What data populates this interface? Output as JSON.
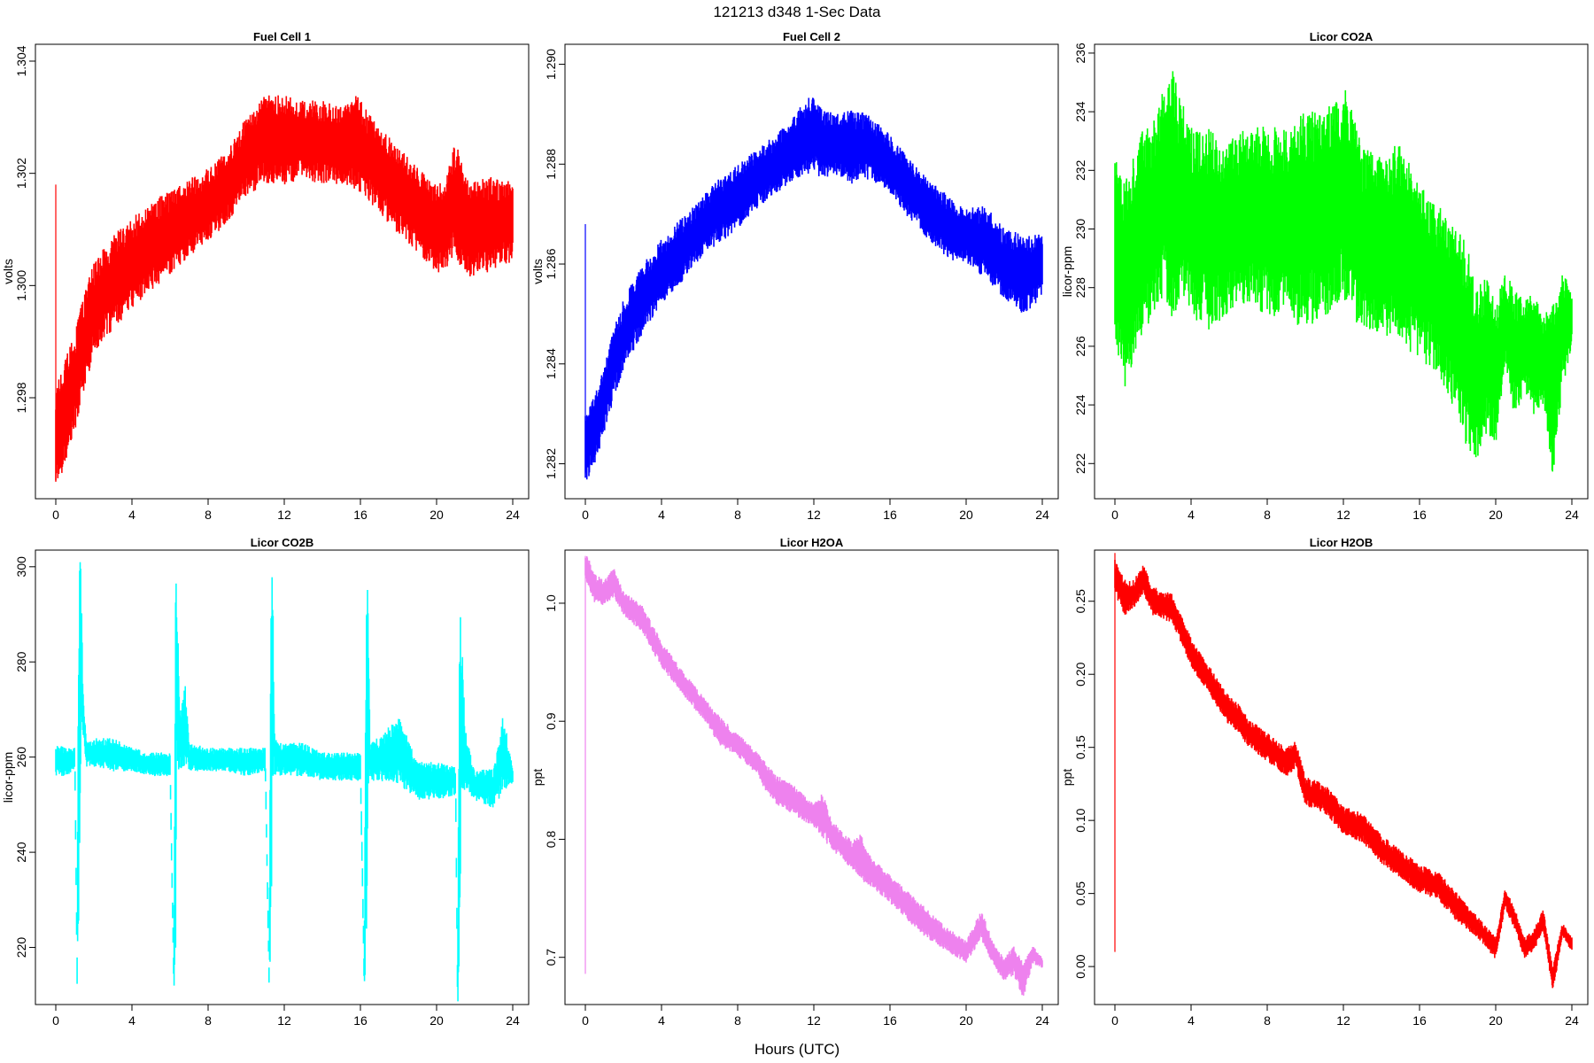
{
  "page": {
    "title": "121213   d348   1-Sec Data",
    "xlabel": "Hours (UTC)"
  },
  "chart_data": [
    {
      "type": "line",
      "title": "Fuel Cell 1",
      "ylabel": "volts",
      "color": "#ff0000",
      "xlim": [
        0,
        24
      ],
      "ylim": [
        1.2962,
        1.3043
      ],
      "xticks": [
        0,
        4,
        8,
        12,
        16,
        20,
        24
      ],
      "yticks": [
        "1.298",
        "1.300",
        "1.302",
        "1.304"
      ],
      "spike": {
        "x": 0,
        "min": 1.2965,
        "max": 1.3018
      },
      "x": [
        0,
        0.5,
        1,
        1.5,
        2,
        3,
        4,
        5,
        6,
        7,
        8,
        9,
        10,
        11,
        12,
        13,
        14,
        15,
        15.8,
        17,
        18,
        19,
        20,
        20.5,
        21,
        21.5,
        22,
        23,
        24
      ],
      "min": [
        1.2964,
        1.2968,
        1.2974,
        1.2981,
        1.2988,
        1.2992,
        1.2996,
        1.2999,
        1.3002,
        1.3005,
        1.3008,
        1.3011,
        1.3016,
        1.3018,
        1.3018,
        1.3019,
        1.3018,
        1.3018,
        1.3017,
        1.3013,
        1.3009,
        1.3006,
        1.3002,
        1.3003,
        1.3005,
        1.3002,
        1.3001,
        1.3003,
        1.3004
      ],
      "max": [
        1.2982,
        1.2987,
        1.2992,
        1.2999,
        1.3004,
        1.3009,
        1.3012,
        1.3015,
        1.3017,
        1.3019,
        1.3021,
        1.3024,
        1.303,
        1.3034,
        1.3034,
        1.3033,
        1.3033,
        1.3032,
        1.3034,
        1.3028,
        1.3025,
        1.3021,
        1.3018,
        1.3019,
        1.3026,
        1.302,
        1.3019,
        1.302,
        1.3019
      ]
    },
    {
      "type": "line",
      "title": "Fuel Cell 2",
      "ylabel": "volts",
      "color": "#0000ff",
      "xlim": [
        0,
        24
      ],
      "ylim": [
        1.2813,
        1.2904
      ],
      "xticks": [
        0,
        4,
        8,
        12,
        16,
        20,
        24
      ],
      "yticks": [
        "1.282",
        "1.284",
        "1.286",
        "1.288",
        "1.290"
      ],
      "spike": {
        "x": 0,
        "min": 1.2818,
        "max": 1.2868
      },
      "x": [
        0,
        0.5,
        1,
        1.5,
        2,
        3,
        4,
        5,
        6,
        7,
        8,
        9,
        10,
        11,
        11.8,
        12.5,
        13,
        14,
        15,
        16,
        17,
        18,
        19,
        20,
        21,
        22,
        23,
        24
      ],
      "min": [
        1.2816,
        1.282,
        1.2826,
        1.2833,
        1.2839,
        1.2846,
        1.2852,
        1.2856,
        1.2861,
        1.2864,
        1.2867,
        1.2871,
        1.2874,
        1.2877,
        1.2878,
        1.2877,
        1.2878,
        1.2876,
        1.2877,
        1.2874,
        1.2869,
        1.2865,
        1.2861,
        1.286,
        1.2857,
        1.2853,
        1.285,
        1.2853
      ],
      "max": [
        1.283,
        1.2834,
        1.284,
        1.2847,
        1.2853,
        1.286,
        1.2865,
        1.2869,
        1.2873,
        1.2877,
        1.288,
        1.2883,
        1.2886,
        1.289,
        1.2894,
        1.2892,
        1.289,
        1.2891,
        1.289,
        1.2886,
        1.2881,
        1.2877,
        1.2874,
        1.2871,
        1.2872,
        1.2867,
        1.2866,
        1.2866
      ]
    },
    {
      "type": "line",
      "title": "Licor CO2A",
      "ylabel": "licor-ppm",
      "color": "#00ff00",
      "xlim": [
        0,
        24
      ],
      "ylim": [
        220.8,
        236.3
      ],
      "xticks": [
        0,
        4,
        8,
        12,
        16,
        20,
        24
      ],
      "yticks": [
        "222",
        "224",
        "226",
        "228",
        "230",
        "232",
        "234",
        "236"
      ],
      "spike": null,
      "x": [
        0,
        0.5,
        1,
        1.5,
        2,
        2.5,
        3,
        3.5,
        4,
        5,
        6,
        7,
        8,
        9,
        10,
        11,
        12,
        13,
        14,
        15,
        16,
        17,
        18,
        18.5,
        19,
        19.5,
        20,
        20.5,
        21,
        21.5,
        22,
        22.5,
        23,
        23.5,
        24
      ],
      "min": [
        226.0,
        224.5,
        225.5,
        226.5,
        227.0,
        227.5,
        227.0,
        227.5,
        227.0,
        226.5,
        227.0,
        227.5,
        227.0,
        227.0,
        226.5,
        227.0,
        227.5,
        226.5,
        226.5,
        226.0,
        225.5,
        225.0,
        223.5,
        222.5,
        222.0,
        223.0,
        222.5,
        225.5,
        223.5,
        224.5,
        223.5,
        224.0,
        221.5,
        224.5,
        226.0
      ],
      "max": [
        233.0,
        231.5,
        232.5,
        233.5,
        234.0,
        235.0,
        235.5,
        234.5,
        233.5,
        233.5,
        233.0,
        233.5,
        233.5,
        233.5,
        234.0,
        234.0,
        235.0,
        233.0,
        232.5,
        233.0,
        231.5,
        231.0,
        230.0,
        229.5,
        228.0,
        228.5,
        227.5,
        228.5,
        228.0,
        227.5,
        228.0,
        227.0,
        227.5,
        228.5,
        228.0
      ]
    },
    {
      "type": "line",
      "title": "Licor CO2B",
      "ylabel": "licor-ppm",
      "color": "#00ffff",
      "xlim": [
        0,
        24
      ],
      "ylim": [
        208.0,
        303.5
      ],
      "xticks": [
        0,
        4,
        8,
        12,
        16,
        20,
        24
      ],
      "yticks": [
        "220",
        "240",
        "260",
        "280",
        "300"
      ],
      "spike": null,
      "x": [
        0,
        0.5,
        1.0,
        1.12,
        1.2,
        1.3,
        1.45,
        1.6,
        2,
        3,
        4,
        5,
        6.0,
        6.2,
        6.28,
        6.35,
        6.5,
        6.8,
        7,
        8,
        9,
        10,
        11.0,
        11.2,
        11.3,
        11.38,
        11.5,
        12,
        13,
        14,
        15,
        16.0,
        16.2,
        16.3,
        16.4,
        16.5,
        17,
        18,
        19,
        20,
        21.0,
        21.1,
        21.2,
        21.3,
        21.5,
        22,
        23,
        23.5,
        24
      ],
      "min": [
        256,
        256,
        257,
        212,
        212,
        258,
        265,
        258,
        258,
        257,
        257,
        256,
        256,
        211,
        211,
        255,
        257,
        258,
        257,
        257,
        257,
        256,
        257,
        212,
        213,
        255,
        256,
        256,
        256,
        255,
        255,
        255,
        211,
        211,
        254,
        255,
        255,
        254,
        251,
        251,
        252,
        208,
        208,
        252,
        253,
        251,
        249,
        253,
        254
      ],
      "max": [
        263,
        262,
        262,
        218,
        302,
        302,
        273,
        264,
        264,
        264,
        262,
        261,
        261,
        215,
        299,
        299,
        270,
        275,
        263,
        262,
        262,
        262,
        262,
        216,
        300,
        300,
        264,
        263,
        263,
        261,
        261,
        261,
        216,
        299,
        299,
        264,
        264,
        269,
        259,
        259,
        258,
        214,
        291,
        288,
        266,
        257,
        258,
        269,
        258
      ]
    },
    {
      "type": "line",
      "title": "Licor H2OA",
      "ylabel": "ppt",
      "color": "#ee82ee",
      "xlim": [
        0,
        24
      ],
      "ylim": [
        0.66,
        1.045
      ],
      "xticks": [
        0,
        4,
        8,
        12,
        16,
        20,
        24
      ],
      "yticks": [
        "0.7",
        "0.8",
        "0.9",
        "1.0"
      ],
      "spike": {
        "x": 0,
        "min": 0.686,
        "max": 1.04
      },
      "x": [
        0,
        0.5,
        1,
        1.5,
        2,
        3,
        4,
        5,
        6,
        6.5,
        7,
        8,
        9,
        9.5,
        10,
        11,
        12,
        12.5,
        13,
        14,
        14.5,
        15,
        16,
        17,
        18,
        19,
        20,
        20.8,
        21.5,
        22,
        22.5,
        23,
        23.5,
        24
      ],
      "min": [
        1.02,
        1.0,
        0.998,
        1.005,
        0.99,
        0.975,
        0.945,
        0.925,
        0.905,
        0.895,
        0.88,
        0.87,
        0.855,
        0.84,
        0.83,
        0.82,
        0.81,
        0.8,
        0.79,
        0.775,
        0.765,
        0.76,
        0.745,
        0.73,
        0.715,
        0.705,
        0.695,
        0.715,
        0.69,
        0.68,
        0.685,
        0.665,
        0.695,
        0.69
      ],
      "max": [
        1.045,
        1.025,
        1.02,
        1.03,
        1.01,
        0.998,
        0.968,
        0.945,
        0.925,
        0.915,
        0.905,
        0.89,
        0.875,
        0.865,
        0.855,
        0.845,
        0.83,
        0.84,
        0.815,
        0.8,
        0.805,
        0.785,
        0.77,
        0.755,
        0.74,
        0.725,
        0.715,
        0.74,
        0.71,
        0.7,
        0.71,
        0.695,
        0.71,
        0.7
      ]
    },
    {
      "type": "line",
      "title": "Licor H2OB",
      "ylabel": "ppt",
      "color": "#ff0000",
      "xlim": [
        0,
        24
      ],
      "ylim": [
        -0.026,
        0.285
      ],
      "xticks": [
        0,
        4,
        8,
        12,
        16,
        20,
        24
      ],
      "yticks": [
        "0.00",
        "0.05",
        "0.10",
        "0.15",
        "0.20",
        "0.25"
      ],
      "spike": {
        "x": 0,
        "min": 0.01,
        "max": 0.283
      },
      "x": [
        0,
        0.5,
        1,
        1.5,
        2,
        3,
        4,
        5,
        6,
        6.5,
        7,
        8,
        9,
        9.5,
        10,
        11,
        12,
        13,
        14,
        15,
        16,
        17,
        18,
        19,
        20,
        20.5,
        21,
        21.5,
        22,
        22.5,
        23,
        23.5,
        24
      ],
      "min": [
        0.255,
        0.24,
        0.245,
        0.255,
        0.24,
        0.235,
        0.205,
        0.185,
        0.165,
        0.16,
        0.15,
        0.14,
        0.13,
        0.135,
        0.11,
        0.105,
        0.09,
        0.085,
        0.07,
        0.06,
        0.05,
        0.045,
        0.03,
        0.02,
        0.005,
        0.04,
        0.025,
        0.005,
        0.01,
        0.025,
        -0.018,
        0.02,
        0.01
      ],
      "max": [
        0.28,
        0.265,
        0.265,
        0.275,
        0.26,
        0.255,
        0.225,
        0.205,
        0.185,
        0.18,
        0.17,
        0.16,
        0.15,
        0.155,
        0.13,
        0.125,
        0.11,
        0.105,
        0.09,
        0.08,
        0.07,
        0.065,
        0.05,
        0.035,
        0.02,
        0.055,
        0.04,
        0.02,
        0.025,
        0.04,
        0.0,
        0.03,
        0.02
      ]
    }
  ]
}
